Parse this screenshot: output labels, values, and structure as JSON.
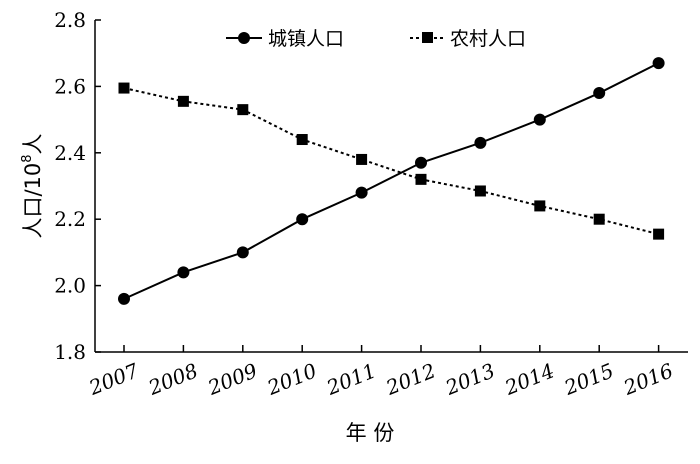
{
  "chart_data": {
    "type": "line",
    "xlabel": "年 份",
    "ylabel_main": "人口/10",
    "ylabel_sup": "8",
    "ylabel_end": "人",
    "ylim": [
      1.8,
      2.8
    ],
    "yticks": [
      "1.8",
      "2.0",
      "2.2",
      "2.4",
      "2.6",
      "2.8"
    ],
    "categories": [
      "2007",
      "2008",
      "2009",
      "2010",
      "2011",
      "2012",
      "2013",
      "2014",
      "2015",
      "2016"
    ],
    "series": [
      {
        "name": "城镇人口",
        "marker": "circle",
        "line": "solid",
        "values": [
          1.96,
          2.04,
          2.1,
          2.2,
          2.28,
          2.37,
          2.43,
          2.5,
          2.58,
          2.67
        ]
      },
      {
        "name": "农村人口",
        "marker": "square",
        "line": "dashed",
        "values": [
          2.595,
          2.555,
          2.53,
          2.44,
          2.38,
          2.32,
          2.285,
          2.24,
          2.2,
          2.155
        ]
      }
    ],
    "legend_position": "top-center",
    "grid": false
  }
}
